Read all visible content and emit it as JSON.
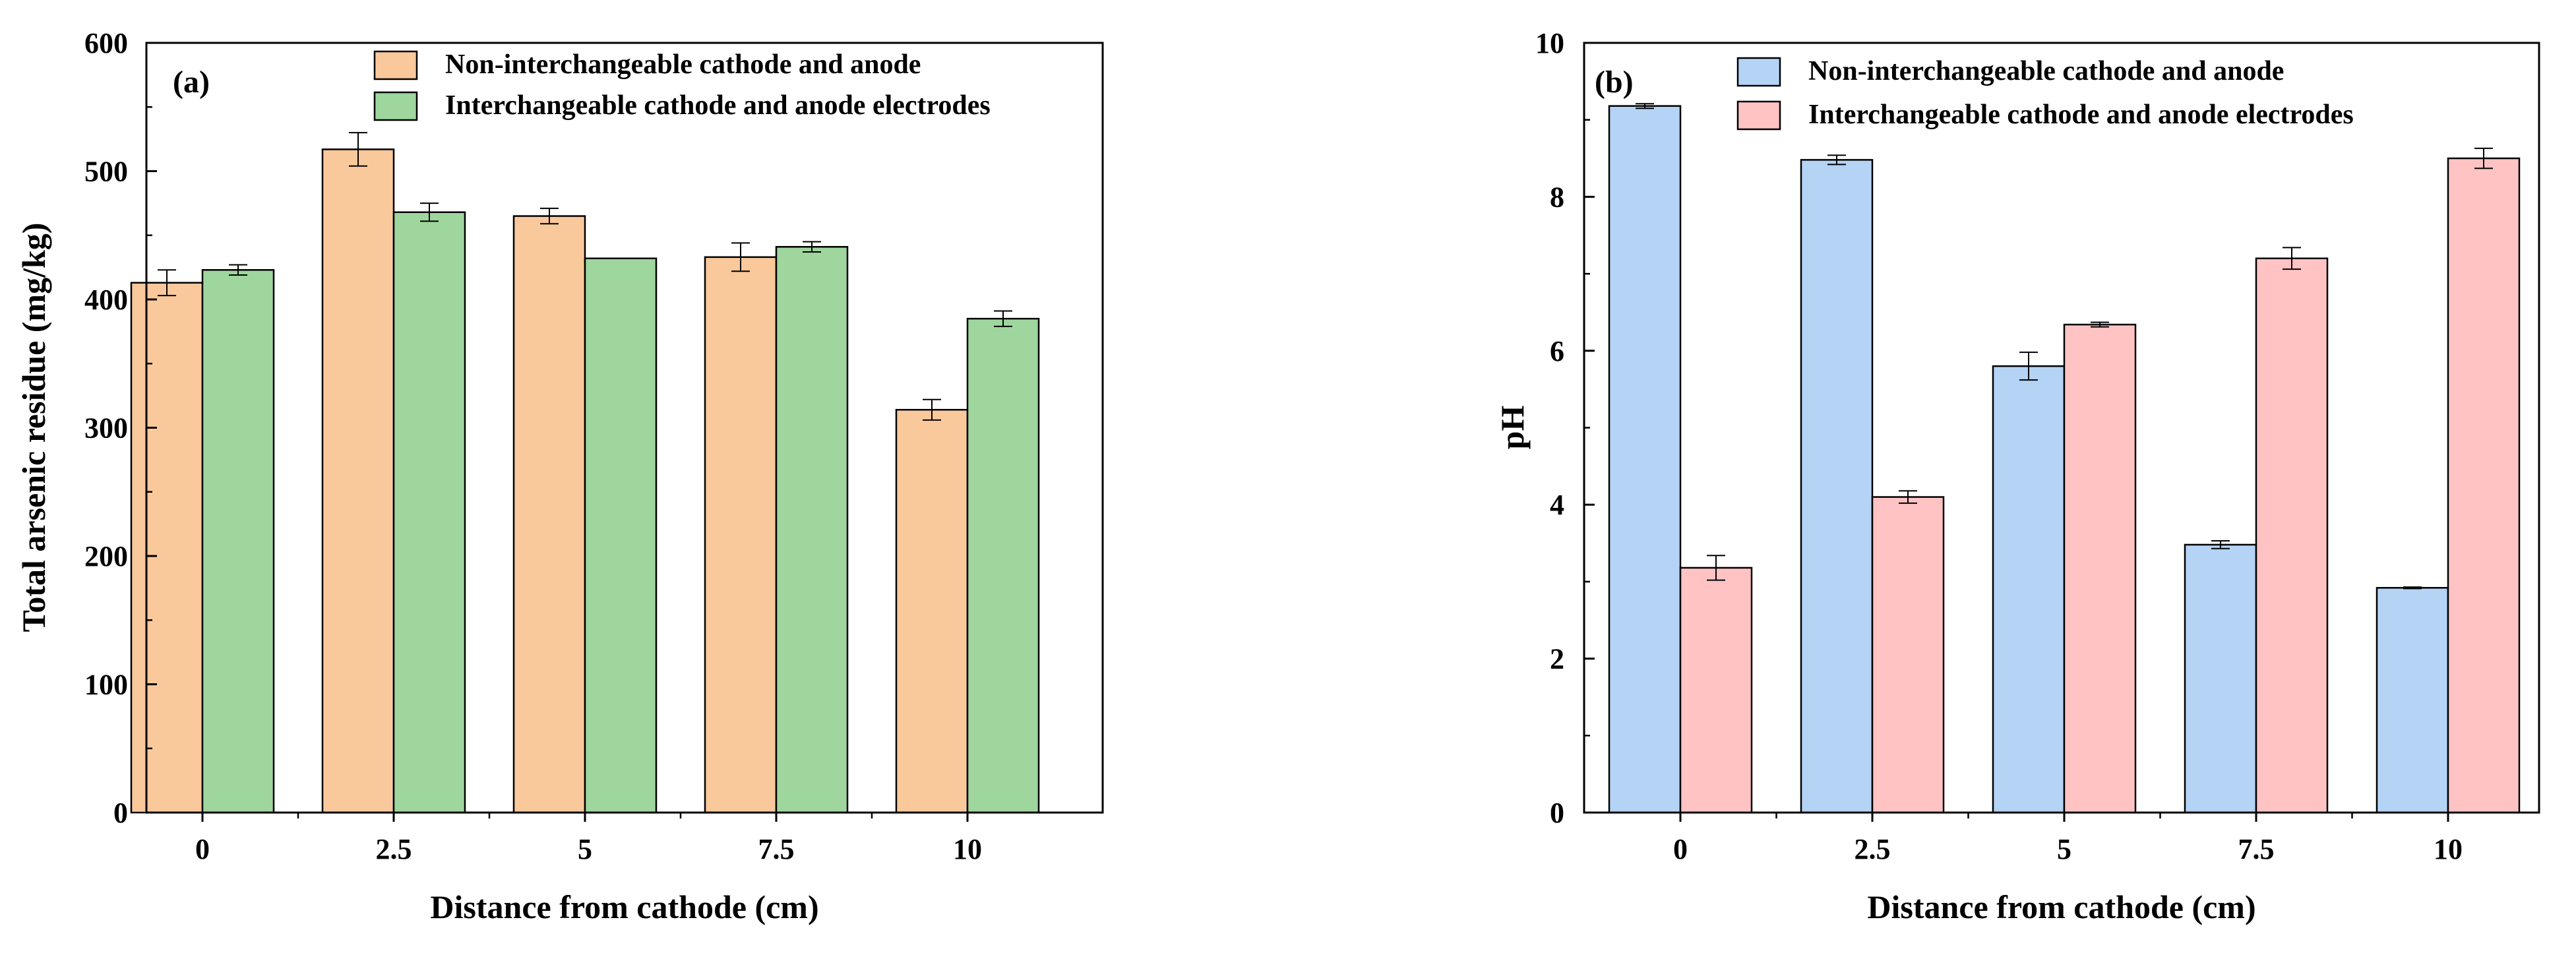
{
  "chart_data": [
    {
      "type": "bar",
      "panel_label": "(a)",
      "categories": [
        "0",
        "2.5",
        "5",
        "7.5",
        "10"
      ],
      "series": [
        {
          "name": "Non-interchangeable cathode and anode",
          "color": "#F9C89B",
          "values": [
            413,
            517,
            465,
            433,
            314
          ],
          "errors": [
            10,
            13,
            6,
            11,
            8
          ]
        },
        {
          "name": "Interchangeable cathode and anode electrodes",
          "color": "#9ED69E",
          "values": [
            423,
            468,
            432,
            441,
            385
          ],
          "errors": [
            4,
            7,
            0,
            4,
            6
          ]
        }
      ],
      "xlabel": "Distance from cathode (cm)",
      "ylabel": "Total arsenic residue (mg/kg)",
      "ylim": [
        0,
        600
      ],
      "yticks": [
        "0",
        "100",
        "200",
        "300",
        "400",
        "500",
        "600"
      ],
      "legend": "top-right"
    },
    {
      "type": "bar",
      "panel_label": "(b)",
      "categories": [
        "0",
        "2.5",
        "5",
        "7.5",
        "10"
      ],
      "series": [
        {
          "name": "Non-interchangeable cathode and anode",
          "color": "#B4D3F5",
          "values": [
            9.18,
            8.48,
            5.8,
            3.48,
            2.92
          ],
          "errors": [
            0.03,
            0.06,
            0.18,
            0.05,
            0.01
          ]
        },
        {
          "name": "Interchangeable cathode and anode electrodes",
          "color": "#FFC3C4",
          "values": [
            3.18,
            4.1,
            6.34,
            7.2,
            8.5
          ],
          "errors": [
            0.16,
            0.08,
            0.03,
            0.14,
            0.13
          ]
        }
      ],
      "xlabel": "Distance from cathode (cm)",
      "ylabel": "pH",
      "ylim": [
        0,
        10
      ],
      "yticks": [
        "0",
        "2",
        "4",
        "6",
        "8",
        "10"
      ],
      "legend": "top-right"
    }
  ]
}
